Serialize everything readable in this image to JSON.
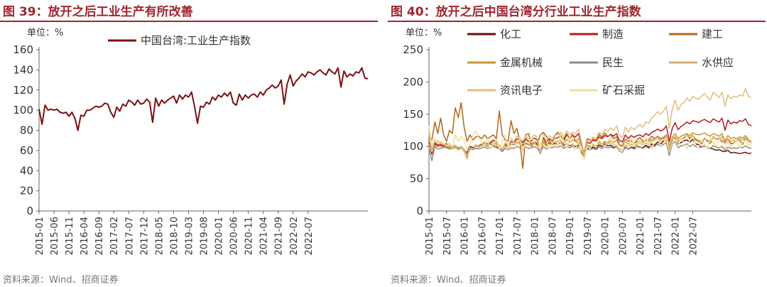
{
  "left_panel": {
    "title": "图 39：放开之后工业生产有所改善",
    "source": "资料来源：Wind、招商证券"
  },
  "right_panel": {
    "title": "图 40：放开之后中国台湾分行业工业生产指数",
    "source": "资料来源：Wind、招商证券"
  },
  "colors": {
    "title": "#a0252f",
    "series_left": "#7b1113",
    "化工": "#6b0e10",
    "制造": "#b51c20",
    "建工": "#b3661c",
    "金属机械": "#c9962f",
    "民生": "#8c8c8c",
    "水供应": "#d8b070",
    "资讯电子": "#e2bd80",
    "矿石采掘": "#f3e098"
  },
  "chart_data": [
    {
      "type": "line",
      "unit_label": "单位：%",
      "ylim": [
        0,
        160
      ],
      "yticks": [
        0,
        20,
        40,
        60,
        80,
        100,
        120,
        140,
        160
      ],
      "xticks": [
        "2015-01",
        "2015-06",
        "2015-11",
        "2016-04",
        "2016-09",
        "2017-02",
        "2017-07",
        "2017-12",
        "2018-05",
        "2018-10",
        "2019-03",
        "2019-08",
        "2020-01",
        "2020-06",
        "2020-11",
        "2021-04",
        "2021-09",
        "2022-02",
        "2022-07"
      ],
      "start": "2015-01",
      "series": [
        {
          "name": "中国台湾:工业生产指数",
          "values": [
            101,
            86,
            105,
            100,
            101,
            100,
            101,
            98,
            97,
            98,
            94,
            98,
            92,
            80,
            95,
            94,
            100,
            100,
            102,
            104,
            103,
            104,
            107,
            106,
            98,
            93,
            103,
            99,
            106,
            104,
            110,
            108,
            105,
            110,
            106,
            107,
            111,
            108,
            88,
            112,
            104,
            110,
            107,
            110,
            112,
            114,
            107,
            115,
            111,
            115,
            113,
            118,
            104,
            87,
            104,
            103,
            108,
            106,
            113,
            110,
            115,
            113,
            117,
            114,
            118,
            107,
            105,
            116,
            110,
            115,
            112,
            115,
            116,
            113,
            118,
            115,
            120,
            122,
            125,
            122,
            124,
            130,
            106,
            126,
            135,
            124,
            129,
            132,
            136,
            133,
            138,
            137,
            135,
            138,
            140,
            137,
            135,
            141,
            138,
            136,
            142,
            123,
            139,
            133,
            136,
            134,
            138,
            137,
            142,
            132,
            131
          ]
        }
      ]
    },
    {
      "type": "line",
      "unit_label": "单位：%",
      "ylim": [
        0,
        250
      ],
      "yticks": [
        0,
        50,
        100,
        150,
        200,
        250
      ],
      "xticks": [
        "2015-01",
        "2015-07",
        "2016-01",
        "2016-07",
        "2017-01",
        "2017-07",
        "2018-01",
        "2018-07",
        "2019-01",
        "2019-07",
        "2020-01",
        "2020-07",
        "2021-01",
        "2021-07",
        "2022-01",
        "2022-07"
      ],
      "start": "2015-01",
      "legend": [
        "化工",
        "制造",
        "建工",
        "金属机械",
        "民生",
        "水供应",
        "资讯电子",
        "矿石采掘"
      ],
      "series": [
        {
          "name": "化工",
          "values": [
            105,
            96,
            103,
            100,
            101,
            102,
            99,
            100,
            98,
            101,
            97,
            100,
            95,
            90,
            100,
            98,
            101,
            100,
            102,
            103,
            101,
            104,
            102,
            100,
            97,
            94,
            103,
            100,
            104,
            103,
            107,
            104,
            101,
            105,
            103,
            104,
            106,
            103,
            90,
            106,
            101,
            105,
            103,
            105,
            104,
            106,
            102,
            104,
            101,
            103,
            100,
            102,
            92,
            85,
            98,
            96,
            99,
            97,
            102,
            100,
            104,
            101,
            102,
            99,
            100,
            93,
            91,
            99,
            96,
            99,
            98,
            101,
            99,
            98,
            102,
            99,
            104,
            102,
            107,
            104,
            108,
            110,
            96,
            109,
            114,
            104,
            106,
            109,
            110,
            107,
            111,
            104,
            103,
            99,
            101,
            98,
            97,
            96,
            94,
            95,
            93,
            92,
            94,
            90,
            91,
            90,
            89,
            90,
            91,
            89,
            90
          ]
        },
        {
          "name": "制造",
          "values": [
            108,
            88,
            106,
            102,
            103,
            101,
            104,
            98,
            97,
            99,
            95,
            100,
            94,
            82,
            97,
            96,
            102,
            101,
            104,
            106,
            104,
            106,
            109,
            107,
            99,
            94,
            104,
            100,
            108,
            106,
            112,
            110,
            106,
            112,
            108,
            109,
            113,
            110,
            89,
            114,
            106,
            112,
            109,
            112,
            114,
            116,
            109,
            118,
            113,
            117,
            115,
            120,
            106,
            88,
            106,
            105,
            110,
            108,
            115,
            112,
            117,
            115,
            119,
            116,
            120,
            109,
            107,
            118,
            112,
            117,
            114,
            117,
            118,
            115,
            120,
            117,
            122,
            124,
            127,
            124,
            126,
            132,
            108,
            128,
            137,
            126,
            131,
            134,
            138,
            135,
            140,
            139,
            137,
            140,
            142,
            139,
            137,
            143,
            140,
            138,
            144,
            125,
            141,
            135,
            138,
            136,
            140,
            139,
            143,
            134,
            132
          ]
        },
        {
          "name": "建工",
          "values": [
            112,
            110,
            138,
            120,
            144,
            118,
            108,
            125,
            120,
            160,
            145,
            168,
            130,
            108,
            118,
            110,
            115,
            116,
            112,
            118,
            112,
            115,
            118,
            112,
            155,
            118,
            110,
            108,
            140,
            120,
            128,
            109,
            66,
            118,
            120,
            100,
            108,
            104,
            118,
            122,
            116,
            110,
            103,
            118,
            122,
            116,
            112,
            120,
            111,
            119,
            108,
            105,
            104,
            90,
            112,
            110,
            112,
            109,
            119,
            114,
            121,
            116,
            118,
            112,
            115,
            103,
            101,
            111,
            108,
            110,
            104,
            110,
            114,
            108,
            109,
            110,
            116,
            112,
            116,
            112,
            114,
            118,
            98,
            112,
            116,
            108,
            112,
            113,
            118,
            112,
            117,
            110,
            108,
            104,
            113,
            108,
            105,
            115,
            111,
            113,
            108,
            106,
            112,
            104,
            106,
            112,
            110,
            103,
            113,
            108,
            106
          ]
        },
        {
          "name": "金属机械",
          "values": [
            104,
            92,
            102,
            100,
            101,
            98,
            102,
            97,
            96,
            100,
            94,
            99,
            92,
            84,
            97,
            95,
            100,
            99,
            102,
            103,
            101,
            103,
            105,
            104,
            98,
            93,
            102,
            98,
            104,
            102,
            107,
            106,
            103,
            108,
            104,
            105,
            107,
            106,
            90,
            109,
            103,
            107,
            104,
            107,
            108,
            109,
            104,
            111,
            107,
            110,
            108,
            112,
            101,
            88,
            102,
            100,
            103,
            101,
            107,
            104,
            108,
            106,
            109,
            106,
            110,
            102,
            100,
            108,
            104,
            108,
            105,
            107,
            108,
            106,
            110,
            107,
            111,
            112,
            114,
            111,
            113,
            117,
            102,
            114,
            120,
            112,
            116,
            118,
            120,
            117,
            121,
            119,
            118,
            119,
            121,
            118,
            116,
            120,
            118,
            116,
            120,
            108,
            117,
            112,
            114,
            112,
            115,
            113,
            117,
            110,
            108
          ]
        },
        {
          "name": "民生",
          "values": [
            98,
            78,
            100,
            96,
            97,
            99,
            98,
            96,
            97,
            98,
            96,
            97,
            95,
            88,
            96,
            95,
            97,
            96,
            98,
            99,
            97,
            99,
            100,
            98,
            96,
            92,
            97,
            95,
            98,
            97,
            100,
            98,
            96,
            99,
            97,
            98,
            100,
            97,
            90,
            100,
            96,
            99,
            98,
            100,
            99,
            101,
            97,
            100,
            98,
            100,
            97,
            99,
            94,
            87,
            96,
            95,
            97,
            95,
            99,
            97,
            100,
            98,
            99,
            97,
            100,
            93,
            91,
            98,
            96,
            98,
            96,
            98,
            99,
            97,
            100,
            97,
            101,
            100,
            104,
            100,
            103,
            106,
            86,
            104,
            108,
            98,
            101,
            102,
            104,
            100,
            103,
            100,
            98,
            99,
            101,
            98,
            97,
            101,
            99,
            98,
            100,
            94,
            99,
            97,
            98,
            97,
            99,
            98,
            101,
            98,
            97
          ]
        },
        {
          "name": "水供应",
          "values": [
            120,
            100,
            110,
            108,
            106,
            104,
            102,
            104,
            100,
            102,
            98,
            100,
            96,
            86,
            98,
            96,
            100,
            100,
            101,
            102,
            100,
            103,
            101,
            100,
            102,
            96,
            100,
            98,
            104,
            102,
            106,
            104,
            100,
            104,
            102,
            103,
            104,
            101,
            92,
            106,
            100,
            104,
            102,
            104,
            102,
            106,
            100,
            104,
            100,
            102,
            98,
            100,
            94,
            86,
            100,
            98,
            101,
            100,
            104,
            102,
            106,
            104,
            106,
            102,
            104,
            96,
            95,
            102,
            100,
            104,
            101,
            104,
            105,
            102,
            106,
            103,
            108,
            110,
            112,
            108,
            110,
            116,
            98,
            112,
            118,
            108,
            112,
            114,
            118,
            114,
            118,
            112,
            110,
            108,
            112,
            110,
            108,
            114,
            112,
            110,
            116,
            104,
            112,
            108,
            110,
            108,
            112,
            110,
            114,
            108,
            106
          ]
        },
        {
          "name": "资讯电子",
          "values": [
            125,
            92,
            110,
            104,
            105,
            103,
            106,
            99,
            97,
            100,
            94,
            99,
            92,
            80,
            98,
            96,
            101,
            102,
            105,
            107,
            105,
            108,
            111,
            110,
            100,
            95,
            106,
            102,
            111,
            109,
            116,
            113,
            108,
            116,
            112,
            113,
            118,
            114,
            91,
            120,
            110,
            117,
            113,
            117,
            119,
            122,
            114,
            124,
            118,
            122,
            120,
            127,
            108,
            86,
            108,
            107,
            115,
            112,
            122,
            118,
            126,
            123,
            129,
            125,
            132,
            117,
            114,
            130,
            122,
            130,
            126,
            131,
            134,
            130,
            138,
            136,
            144,
            148,
            154,
            150,
            155,
            162,
            128,
            158,
            172,
            156,
            165,
            168,
            175,
            170,
            178,
            175,
            173,
            178,
            182,
            176,
            172,
            184,
            180,
            176,
            184,
            162,
            180,
            174,
            178,
            176,
            180,
            178,
            190,
            178,
            175
          ]
        },
        {
          "name": "矿石采掘",
          "values": [
            132,
            102,
            112,
            105,
            108,
            104,
            100,
            106,
            98,
            118,
            108,
            115,
            110,
            96,
            102,
            118,
            124,
            114,
            106,
            102,
            112,
            96,
            104,
            110,
            95,
            108,
            118,
            98,
            114,
            106,
            102,
            112,
            92,
            108,
            104,
            115,
            106,
            98,
            102,
            118,
            110,
            96,
            104,
            112,
            102,
            120,
            108,
            98,
            114,
            104,
            96,
            110,
            86,
            80,
            100,
            96,
            106,
            98,
            112,
            104,
            100,
            108,
            114,
            100,
            104,
            94,
            92,
            108,
            100,
            112,
            104,
            96,
            110,
            102,
            114,
            106,
            96,
            108,
            114,
            100,
            106,
            112,
            92,
            106,
            118,
            100,
            112,
            106,
            96,
            110,
            116,
            102,
            98,
            110,
            104,
            96,
            114,
            106,
            100,
            112,
            104,
            96,
            108,
            100,
            104,
            112,
            98,
            106,
            110,
            102,
            104
          ]
        }
      ]
    }
  ]
}
